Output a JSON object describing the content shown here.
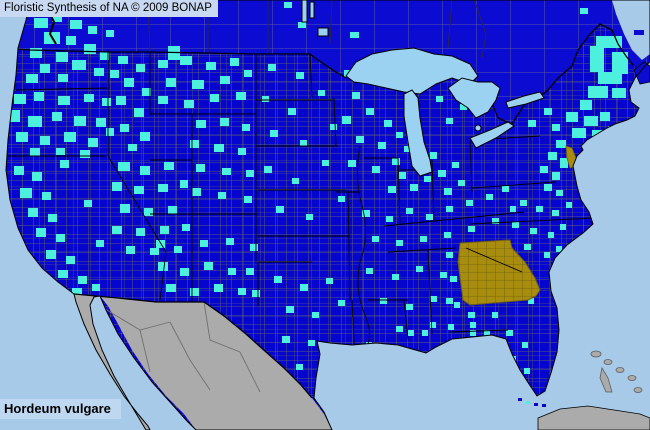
{
  "header": {
    "title": "Floristic Synthesis of NA © 2009 BONAP"
  },
  "footer": {
    "species_name": "Hordeum vulgare"
  },
  "colors": {
    "ocean": "#A6CAE8",
    "lake": "#9CD2F1",
    "us_fill": "#0505CD",
    "canada_fill": "#0B0BD2",
    "mexico_fill": "#ABABAB",
    "county_record": "#4DF0DC",
    "state_noxious_gold": "#A88C0E",
    "gold_border": "#6B5E14",
    "county_line": "#6F7060",
    "canada_division_line": "#6F6F92",
    "foreign_line": "#707070",
    "border_black": "#000000",
    "title_bg": "#C9D9F2"
  },
  "map": {
    "regions": [
      {
        "name": "united-states",
        "fill_key": "us_fill"
      },
      {
        "name": "canada",
        "fill_key": "canada_fill"
      },
      {
        "name": "mexico",
        "fill_key": "mexico_fill"
      },
      {
        "name": "georgia",
        "fill_key": "state_noxious_gold"
      },
      {
        "name": "delaware",
        "fill_key": "state_noxious_gold"
      }
    ],
    "county_records": [
      [
        34,
        18,
        14,
        10
      ],
      [
        52,
        14,
        10,
        8
      ],
      [
        70,
        20,
        12,
        9
      ],
      [
        88,
        26,
        9,
        8
      ],
      [
        44,
        32,
        16,
        12
      ],
      [
        66,
        36,
        10,
        9
      ],
      [
        30,
        48,
        12,
        10
      ],
      [
        84,
        44,
        12,
        10
      ],
      [
        100,
        52,
        9,
        8
      ],
      [
        56,
        52,
        12,
        10
      ],
      [
        40,
        64,
        10,
        9
      ],
      [
        72,
        60,
        14,
        10
      ],
      [
        94,
        68,
        10,
        8
      ],
      [
        26,
        74,
        12,
        9
      ],
      [
        58,
        74,
        10,
        8
      ],
      [
        106,
        30,
        8,
        7
      ],
      [
        110,
        70,
        9,
        8
      ],
      [
        14,
        94,
        12,
        10
      ],
      [
        34,
        92,
        10,
        9
      ],
      [
        58,
        96,
        12,
        9
      ],
      [
        84,
        94,
        10,
        8
      ],
      [
        102,
        98,
        9,
        8
      ],
      [
        10,
        110,
        10,
        12
      ],
      [
        28,
        116,
        14,
        11
      ],
      [
        52,
        112,
        10,
        9
      ],
      [
        74,
        116,
        12,
        10
      ],
      [
        96,
        118,
        10,
        9
      ],
      [
        16,
        132,
        12,
        10
      ],
      [
        40,
        136,
        10,
        9
      ],
      [
        64,
        132,
        12,
        10
      ],
      [
        88,
        138,
        10,
        9
      ],
      [
        106,
        128,
        8,
        8
      ],
      [
        30,
        148,
        10,
        8
      ],
      [
        56,
        148,
        9,
        7
      ],
      [
        80,
        150,
        10,
        8
      ],
      [
        118,
        56,
        10,
        8
      ],
      [
        136,
        64,
        9,
        8
      ],
      [
        124,
        78,
        10,
        9
      ],
      [
        142,
        88,
        9,
        8
      ],
      [
        116,
        96,
        10,
        9
      ],
      [
        134,
        108,
        10,
        9
      ],
      [
        120,
        124,
        9,
        8
      ],
      [
        140,
        132,
        10,
        9
      ],
      [
        128,
        144,
        9,
        7
      ],
      [
        158,
        60,
        10,
        8
      ],
      [
        180,
        56,
        12,
        9
      ],
      [
        206,
        62,
        10,
        8
      ],
      [
        230,
        58,
        9,
        8
      ],
      [
        166,
        78,
        10,
        9
      ],
      [
        192,
        80,
        12,
        9
      ],
      [
        220,
        76,
        10,
        8
      ],
      [
        244,
        70,
        8,
        7
      ],
      [
        158,
        96,
        10,
        8
      ],
      [
        184,
        100,
        10,
        8
      ],
      [
        210,
        94,
        9,
        8
      ],
      [
        236,
        92,
        10,
        8
      ],
      [
        268,
        64,
        8,
        7
      ],
      [
        296,
        72,
        8,
        7
      ],
      [
        262,
        96,
        7,
        6
      ],
      [
        288,
        108,
        8,
        7
      ],
      [
        318,
        90,
        7,
        6
      ],
      [
        270,
        130,
        8,
        7
      ],
      [
        300,
        140,
        7,
        6
      ],
      [
        330,
        124,
        7,
        6
      ],
      [
        264,
        166,
        8,
        7
      ],
      [
        292,
        178,
        7,
        6
      ],
      [
        322,
        160,
        7,
        6
      ],
      [
        276,
        206,
        8,
        7
      ],
      [
        306,
        214,
        7,
        6
      ],
      [
        338,
        196,
        7,
        6
      ],
      [
        196,
        120,
        10,
        8
      ],
      [
        220,
        118,
        9,
        8
      ],
      [
        242,
        124,
        8,
        7
      ],
      [
        190,
        140,
        9,
        8
      ],
      [
        214,
        144,
        10,
        8
      ],
      [
        238,
        148,
        8,
        7
      ],
      [
        196,
        164,
        9,
        8
      ],
      [
        222,
        168,
        9,
        7
      ],
      [
        246,
        170,
        8,
        7
      ],
      [
        192,
        188,
        9,
        8
      ],
      [
        218,
        192,
        8,
        7
      ],
      [
        244,
        196,
        8,
        7
      ],
      [
        118,
        162,
        12,
        9
      ],
      [
        140,
        166,
        10,
        9
      ],
      [
        164,
        162,
        10,
        8
      ],
      [
        112,
        182,
        10,
        9
      ],
      [
        134,
        186,
        10,
        8
      ],
      [
        158,
        184,
        10,
        8
      ],
      [
        180,
        180,
        8,
        8
      ],
      [
        120,
        204,
        10,
        9
      ],
      [
        144,
        208,
        9,
        8
      ],
      [
        168,
        206,
        9,
        8
      ],
      [
        112,
        226,
        10,
        8
      ],
      [
        136,
        228,
        9,
        8
      ],
      [
        160,
        226,
        9,
        8
      ],
      [
        182,
        224,
        8,
        7
      ],
      [
        126,
        246,
        9,
        8
      ],
      [
        150,
        248,
        9,
        7
      ],
      [
        174,
        246,
        8,
        7
      ],
      [
        14,
        166,
        10,
        9
      ],
      [
        32,
        172,
        10,
        9
      ],
      [
        20,
        188,
        12,
        10
      ],
      [
        42,
        192,
        9,
        8
      ],
      [
        28,
        208,
        10,
        9
      ],
      [
        48,
        214,
        9,
        8
      ],
      [
        36,
        228,
        10,
        9
      ],
      [
        56,
        234,
        9,
        8
      ],
      [
        46,
        250,
        10,
        9
      ],
      [
        66,
        256,
        9,
        8
      ],
      [
        58,
        270,
        10,
        8
      ],
      [
        78,
        276,
        9,
        8
      ],
      [
        72,
        288,
        10,
        7
      ],
      [
        92,
        284,
        8,
        7
      ],
      [
        60,
        160,
        9,
        8
      ],
      [
        84,
        200,
        8,
        7
      ],
      [
        96,
        240,
        8,
        7
      ],
      [
        158,
        262,
        10,
        9
      ],
      [
        180,
        268,
        9,
        8
      ],
      [
        204,
        262,
        9,
        8
      ],
      [
        228,
        268,
        8,
        7
      ],
      [
        166,
        284,
        10,
        8
      ],
      [
        190,
        288,
        9,
        8
      ],
      [
        214,
        284,
        9,
        8
      ],
      [
        238,
        288,
        8,
        7
      ],
      [
        156,
        240,
        9,
        8
      ],
      [
        200,
        240,
        8,
        7
      ],
      [
        226,
        238,
        8,
        7
      ],
      [
        250,
        244,
        8,
        7
      ],
      [
        246,
        268,
        8,
        7
      ],
      [
        252,
        290,
        8,
        7
      ],
      [
        274,
        276,
        8,
        7
      ],
      [
        300,
        284,
        8,
        7
      ],
      [
        326,
        278,
        7,
        6
      ],
      [
        286,
        306,
        8,
        7
      ],
      [
        312,
        312,
        7,
        6
      ],
      [
        338,
        300,
        7,
        6
      ],
      [
        282,
        336,
        8,
        7
      ],
      [
        308,
        340,
        7,
        6
      ],
      [
        296,
        364,
        7,
        6
      ],
      [
        344,
        70,
        8,
        7
      ],
      [
        368,
        64,
        8,
        7
      ],
      [
        352,
        92,
        8,
        7
      ],
      [
        342,
        116,
        9,
        8
      ],
      [
        366,
        108,
        8,
        7
      ],
      [
        384,
        120,
        8,
        7
      ],
      [
        356,
        136,
        8,
        7
      ],
      [
        378,
        142,
        8,
        7
      ],
      [
        396,
        132,
        7,
        6
      ],
      [
        348,
        160,
        8,
        7
      ],
      [
        372,
        166,
        8,
        7
      ],
      [
        392,
        158,
        8,
        7
      ],
      [
        404,
        146,
        7,
        6
      ],
      [
        398,
        172,
        8,
        7
      ],
      [
        412,
        160,
        7,
        6
      ],
      [
        388,
        186,
        8,
        7
      ],
      [
        410,
        184,
        8,
        7
      ],
      [
        424,
        176,
        7,
        6
      ],
      [
        438,
        170,
        8,
        7
      ],
      [
        452,
        162,
        7,
        6
      ],
      [
        444,
        188,
        8,
        7
      ],
      [
        458,
        180,
        7,
        6
      ],
      [
        430,
        152,
        7,
        7
      ],
      [
        446,
        118,
        7,
        6
      ],
      [
        460,
        104,
        7,
        6
      ],
      [
        436,
        96,
        7,
        6
      ],
      [
        362,
        210,
        8,
        7
      ],
      [
        386,
        216,
        7,
        6
      ],
      [
        406,
        208,
        7,
        6
      ],
      [
        426,
        214,
        7,
        6
      ],
      [
        446,
        206,
        7,
        6
      ],
      [
        466,
        200,
        7,
        6
      ],
      [
        486,
        194,
        7,
        6
      ],
      [
        502,
        186,
        7,
        6
      ],
      [
        372,
        236,
        7,
        6
      ],
      [
        396,
        240,
        7,
        6
      ],
      [
        420,
        236,
        7,
        6
      ],
      [
        444,
        232,
        7,
        6
      ],
      [
        468,
        226,
        7,
        6
      ],
      [
        492,
        218,
        7,
        6
      ],
      [
        510,
        206,
        6,
        6
      ],
      [
        366,
        268,
        7,
        6
      ],
      [
        392,
        274,
        7,
        6
      ],
      [
        416,
        266,
        7,
        6
      ],
      [
        440,
        272,
        7,
        6
      ],
      [
        380,
        298,
        7,
        6
      ],
      [
        406,
        304,
        7,
        6
      ],
      [
        430,
        296,
        7,
        6
      ],
      [
        454,
        302,
        6,
        6
      ],
      [
        396,
        326,
        7,
        6
      ],
      [
        422,
        330,
        6,
        6
      ],
      [
        448,
        324,
        6,
        6
      ],
      [
        470,
        330,
        6,
        6
      ],
      [
        366,
        342,
        6,
        6
      ],
      [
        436,
        348,
        6,
        6
      ],
      [
        470,
        322,
        6,
        6
      ],
      [
        484,
        330,
        6,
        6
      ],
      [
        430,
        322,
        6,
        6
      ],
      [
        408,
        330,
        6,
        6
      ],
      [
        596,
        36,
        26,
        12
      ],
      [
        590,
        46,
        14,
        26
      ],
      [
        612,
        52,
        16,
        22
      ],
      [
        598,
        72,
        24,
        12
      ],
      [
        588,
        86,
        20,
        12
      ],
      [
        612,
        88,
        14,
        10
      ],
      [
        580,
        100,
        12,
        10
      ],
      [
        566,
        112,
        12,
        10
      ],
      [
        584,
        116,
        14,
        10
      ],
      [
        600,
        112,
        10,
        9
      ],
      [
        572,
        128,
        14,
        10
      ],
      [
        592,
        130,
        12,
        9
      ],
      [
        608,
        126,
        10,
        8
      ],
      [
        614,
        138,
        12,
        7
      ],
      [
        556,
        140,
        10,
        8
      ],
      [
        544,
        108,
        8,
        7
      ],
      [
        528,
        120,
        8,
        7
      ],
      [
        552,
        124,
        8,
        7
      ],
      [
        548,
        152,
        9,
        8
      ],
      [
        560,
        158,
        8,
        10
      ],
      [
        540,
        166,
        8,
        7
      ],
      [
        552,
        172,
        8,
        8
      ],
      [
        544,
        184,
        8,
        7
      ],
      [
        556,
        190,
        7,
        6
      ],
      [
        520,
        200,
        7,
        6
      ],
      [
        536,
        206,
        7,
        6
      ],
      [
        552,
        210,
        7,
        6
      ],
      [
        566,
        202,
        6,
        6
      ],
      [
        512,
        222,
        7,
        6
      ],
      [
        530,
        228,
        7,
        6
      ],
      [
        548,
        232,
        6,
        6
      ],
      [
        560,
        224,
        6,
        6
      ],
      [
        524,
        244,
        7,
        6
      ],
      [
        544,
        252,
        6,
        6
      ],
      [
        556,
        246,
        6,
        6
      ],
      [
        446,
        252,
        7,
        6
      ],
      [
        450,
        276,
        7,
        6
      ],
      [
        446,
        298,
        7,
        6
      ],
      [
        468,
        312,
        7,
        6
      ],
      [
        492,
        312,
        6,
        6
      ],
      [
        520,
        286,
        6,
        6
      ],
      [
        528,
        298,
        6,
        6
      ],
      [
        506,
        330,
        7,
        6
      ],
      [
        522,
        342,
        6,
        6
      ],
      [
        510,
        356,
        6,
        6
      ],
      [
        524,
        368,
        6,
        6
      ],
      [
        516,
        380,
        8,
        7
      ],
      [
        46,
        2,
        16,
        8
      ],
      [
        86,
        4,
        20,
        7
      ],
      [
        168,
        46,
        12,
        14
      ],
      [
        284,
        2,
        8,
        6
      ],
      [
        298,
        22,
        8,
        6
      ],
      [
        350,
        32,
        9,
        6
      ],
      [
        446,
        58,
        8,
        6
      ],
      [
        580,
        8,
        8,
        6
      ]
    ]
  }
}
